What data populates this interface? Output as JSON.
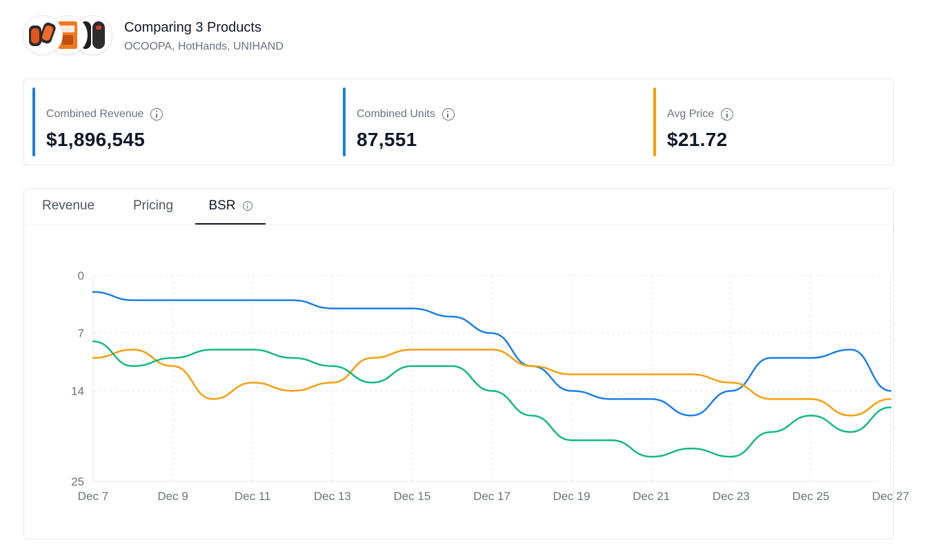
{
  "header": {
    "title": "Comparing 3 Products",
    "subtitle": "OCOOPA, HotHands, UNIHAND",
    "thumbnails": [
      {
        "icon": "hand-warmer-red-product-icon"
      },
      {
        "icon": "hand-warmer-box-product-icon"
      },
      {
        "icon": "hand-warmer-black-product-icon"
      }
    ]
  },
  "stats": [
    {
      "label": "Combined Revenue",
      "value": "$1,896,545",
      "color": "#1a7ee6"
    },
    {
      "label": "Combined Units",
      "value": "87,551",
      "color": "#1a7ee6"
    },
    {
      "label": "Avg Price",
      "value": "$21.72",
      "color": "#f59e0b"
    }
  ],
  "tabs": [
    {
      "label": "Revenue",
      "active": false
    },
    {
      "label": "Pricing",
      "active": false
    },
    {
      "label": "BSR",
      "active": true
    }
  ],
  "chart_data": {
    "type": "line",
    "x": [
      "Dec 7",
      "Dec 8",
      "Dec 9",
      "Dec 10",
      "Dec 11",
      "Dec 12",
      "Dec 13",
      "Dec 14",
      "Dec 15",
      "Dec 16",
      "Dec 17",
      "Dec 18",
      "Dec 19",
      "Dec 20",
      "Dec 21",
      "Dec 22",
      "Dec 23",
      "Dec 24",
      "Dec 25",
      "Dec 26",
      "Dec 27"
    ],
    "x_tick_labels": [
      "Dec 7",
      "Dec 9",
      "Dec 11",
      "Dec 13",
      "Dec 15",
      "Dec 17",
      "Dec 19",
      "Dec 21",
      "Dec 23",
      "Dec 25",
      "Dec 27"
    ],
    "y_ticks": [
      0,
      7,
      14,
      25
    ],
    "ylim": [
      0,
      25
    ],
    "y_reversed": true,
    "grid": true,
    "series": [
      {
        "color": "#1a7ee6",
        "values": [
          2,
          3,
          3,
          3,
          3,
          3,
          4,
          4,
          4,
          5,
          7,
          11,
          14,
          15,
          15,
          17,
          14,
          10,
          10,
          9,
          14
        ]
      },
      {
        "color": "#f59e0b",
        "values": [
          10,
          9,
          11,
          15,
          13,
          14,
          13,
          10,
          9,
          9,
          9,
          11,
          12,
          12,
          12,
          12,
          13,
          15,
          15,
          17,
          15
        ]
      },
      {
        "color": "#10b981",
        "values": [
          8,
          11,
          10,
          9,
          9,
          10,
          11,
          13,
          11,
          11,
          14,
          17,
          20,
          20,
          22,
          21,
          22,
          19,
          17,
          19,
          16
        ]
      }
    ]
  }
}
